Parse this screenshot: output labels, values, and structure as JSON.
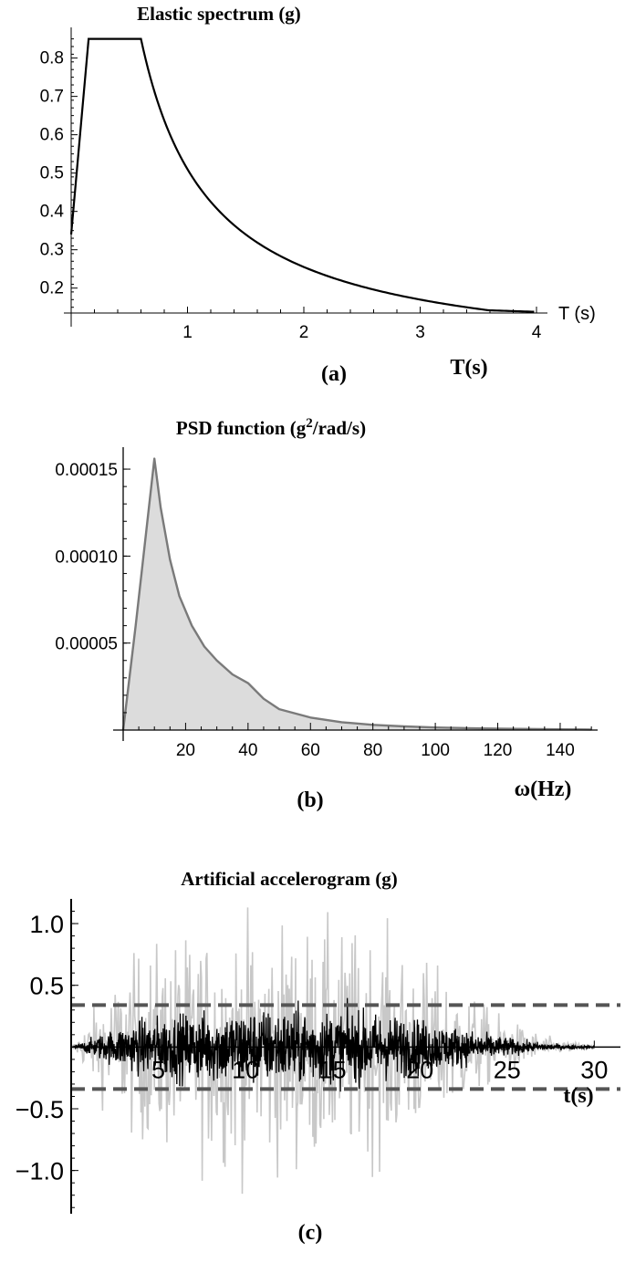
{
  "chart_data": [
    {
      "type": "line",
      "title": "Elastic spectrum (g)",
      "xlabel": "T (s)",
      "xlabel_bottom": "T(s)",
      "panel_label": "(a)",
      "xlim": [
        0,
        4
      ],
      "ylim": [
        0.135,
        0.88
      ],
      "xticks": [
        "1",
        "2",
        "3",
        "4"
      ],
      "yticks": [
        "0.2",
        "0.3",
        "0.4",
        "0.5",
        "0.6",
        "0.7",
        "0.8"
      ],
      "series": [
        {
          "x": [
            0,
            0.15,
            0.6,
            0.7,
            0.8,
            0.9,
            1.0,
            1.2,
            1.4,
            1.6,
            1.8,
            2.0,
            2.25,
            2.5,
            2.75,
            3.0,
            3.25,
            3.5,
            3.75,
            4.0
          ],
          "values": [
            0.34,
            0.85,
            0.85,
            0.729,
            0.638,
            0.567,
            0.51,
            0.425,
            0.364,
            0.319,
            0.283,
            0.255,
            0.227,
            0.204,
            0.185,
            0.17,
            0.157,
            0.146,
            0.14,
            0.138
          ]
        }
      ]
    },
    {
      "type": "area",
      "title_main": "PSD function (g",
      "title_sup": "2",
      "title_rest": "/rad/s)",
      "xlabel": "ω(Hz)",
      "panel_label": "(b)",
      "xlim": [
        0,
        152
      ],
      "ylim": [
        0,
        0.00016
      ],
      "xticks": [
        "20",
        "40",
        "60",
        "80",
        "100",
        "120",
        "140"
      ],
      "yticks": [
        "0.00005",
        "0.00010",
        "0.00015"
      ],
      "series": [
        {
          "x": [
            0,
            4,
            10,
            12,
            15,
            18,
            22,
            26,
            30,
            35,
            40,
            45,
            50,
            60,
            70,
            80,
            90,
            100,
            110,
            120,
            130,
            140,
            150
          ],
          "values": [
            0,
            6e-05,
            0.000156,
            0.000128,
            9.8e-05,
            7.7e-05,
            6e-05,
            4.8e-05,
            4e-05,
            3.2e-05,
            2.7e-05,
            1.8e-05,
            1.2e-05,
            7.2e-06,
            4.5e-06,
            3e-06,
            2.1e-06,
            1.5e-06,
            1.1e-06,
            8e-07,
            6e-07,
            4e-07,
            3e-07
          ]
        }
      ]
    },
    {
      "type": "line",
      "title": "Artificial accelerogram (g)",
      "xlabel": "t(s)",
      "panel_label": "(c)",
      "xlim": [
        0,
        31.5
      ],
      "ylim": [
        -1.35,
        1.2
      ],
      "xticks": [
        "5",
        "10",
        "15",
        "20",
        "25",
        "30"
      ],
      "yticks": [
        "1.0",
        "0.5",
        "−0.5",
        "−1.0"
      ],
      "reference_lines": [
        0.34,
        -0.34
      ],
      "envelope_light": [
        0,
        0.45,
        0.75,
        0.85,
        0.9,
        0.95,
        0.95,
        0.9,
        0.85,
        0.7,
        0.5,
        0.3,
        0.15,
        0.05,
        0.02
      ],
      "envelope_dark": [
        0,
        0.12,
        0.22,
        0.26,
        0.28,
        0.3,
        0.3,
        0.28,
        0.26,
        0.22,
        0.16,
        0.1,
        0.05,
        0.02,
        0.01
      ],
      "envelope_t": [
        0,
        2,
        4,
        6,
        8,
        10,
        13,
        16,
        18,
        20,
        22,
        24,
        26,
        28,
        30
      ]
    }
  ]
}
